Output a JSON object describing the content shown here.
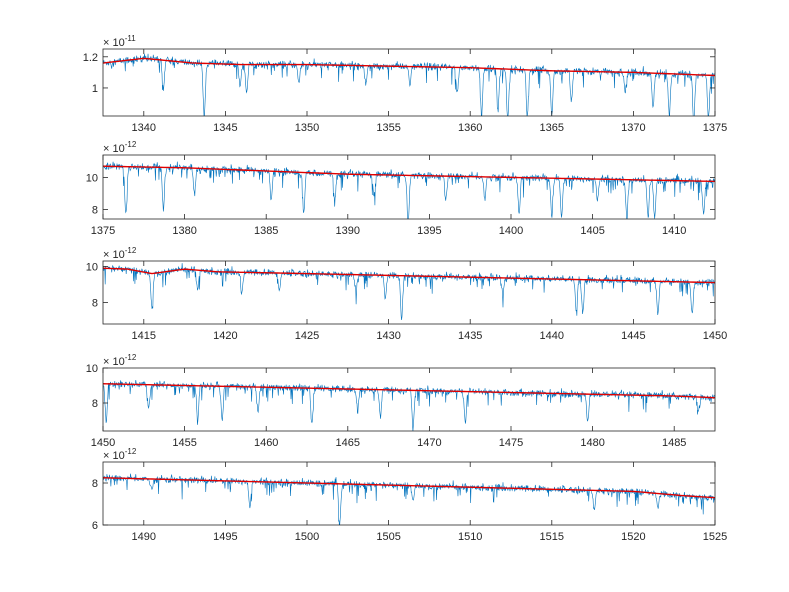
{
  "chart_data": [
    {
      "type": "line",
      "xlim": [
        1337.5,
        1375
      ],
      "ylim": [
        0.82,
        1.25
      ],
      "xticks": [
        1340,
        1345,
        1350,
        1355,
        1360,
        1365,
        1370,
        1375
      ],
      "yticks": [
        1,
        1.2
      ],
      "ytick_labels": [
        "1",
        "1.2"
      ],
      "exponent_base": "× 10",
      "exponent": "-11",
      "spectrum_color": "#0072BD",
      "continuum_color": "#E00000",
      "continuum": [
        [
          1337.5,
          1.16
        ],
        [
          1340,
          1.19
        ],
        [
          1343,
          1.16
        ],
        [
          1346,
          1.15
        ],
        [
          1350,
          1.15
        ],
        [
          1355,
          1.14
        ],
        [
          1360,
          1.13
        ],
        [
          1365,
          1.11
        ],
        [
          1370,
          1.1
        ],
        [
          1375,
          1.08
        ]
      ],
      "absorption_lines": [
        [
          1341.2,
          0.18
        ],
        [
          1343.7,
          0.36
        ],
        [
          1345.9,
          0.13
        ],
        [
          1346.3,
          0.18
        ],
        [
          1349.5,
          0.12
        ],
        [
          1353.6,
          0.12
        ],
        [
          1356.3,
          0.11
        ],
        [
          1359.2,
          0.17
        ],
        [
          1360.7,
          0.3
        ],
        [
          1361.7,
          0.28
        ],
        [
          1362.3,
          0.33
        ],
        [
          1363.5,
          0.3
        ],
        [
          1365.0,
          0.29
        ],
        [
          1366.2,
          0.2
        ],
        [
          1369.5,
          0.12
        ],
        [
          1371.2,
          0.23
        ],
        [
          1372.2,
          0.27
        ],
        [
          1373.7,
          0.31
        ],
        [
          1374.6,
          0.28
        ]
      ],
      "grid": false
    },
    {
      "type": "line",
      "xlim": [
        1375,
        1412.5
      ],
      "ylim": [
        7.4,
        11.4
      ],
      "xticks": [
        1375,
        1380,
        1385,
        1390,
        1395,
        1400,
        1405,
        1410
      ],
      "yticks": [
        8,
        10
      ],
      "ytick_labels": [
        "8",
        "10"
      ],
      "exponent_base": "× 10",
      "exponent": "-12",
      "spectrum_color": "#0072BD",
      "continuum_color": "#E00000",
      "continuum": [
        [
          1375,
          10.7
        ],
        [
          1380,
          10.6
        ],
        [
          1385,
          10.4
        ],
        [
          1390,
          10.2
        ],
        [
          1395,
          10.1
        ],
        [
          1400,
          10.0
        ],
        [
          1405,
          9.9
        ],
        [
          1410,
          9.8
        ],
        [
          1412.5,
          9.75
        ]
      ],
      "absorption_lines": [
        [
          1376.4,
          3.0
        ],
        [
          1378.7,
          2.6
        ],
        [
          1380.6,
          1.6
        ],
        [
          1385.3,
          1.8
        ],
        [
          1387.3,
          2.6
        ],
        [
          1389.2,
          1.8
        ],
        [
          1391.6,
          1.3
        ],
        [
          1393.7,
          3.0
        ],
        [
          1396.0,
          1.5
        ],
        [
          1398.4,
          1.4
        ],
        [
          1400.5,
          2.3
        ],
        [
          1402.5,
          2.4
        ],
        [
          1403.1,
          2.5
        ],
        [
          1405.3,
          1.3
        ],
        [
          1407.1,
          2.4
        ],
        [
          1408.4,
          2.3
        ],
        [
          1408.8,
          2.4
        ],
        [
          1411.8,
          2.0
        ]
      ],
      "grid": false
    },
    {
      "type": "line",
      "xlim": [
        1412.5,
        1450
      ],
      "ylim": [
        6.8,
        10.3
      ],
      "xticks": [
        1415,
        1420,
        1425,
        1430,
        1435,
        1440,
        1445,
        1450
      ],
      "yticks": [
        8,
        10
      ],
      "ytick_labels": [
        "8",
        "10"
      ],
      "exponent_base": "× 10",
      "exponent": "-12",
      "spectrum_color": "#0072BD",
      "continuum_color": "#E00000",
      "continuum": [
        [
          1412.5,
          9.9
        ],
        [
          1414,
          9.85
        ],
        [
          1415.5,
          9.6
        ],
        [
          1417.5,
          9.85
        ],
        [
          1419.5,
          9.7
        ],
        [
          1425,
          9.6
        ],
        [
          1430,
          9.5
        ],
        [
          1435,
          9.4
        ],
        [
          1440,
          9.3
        ],
        [
          1445,
          9.2
        ],
        [
          1450,
          9.1
        ]
      ],
      "absorption_lines": [
        [
          1415.5,
          1.9
        ],
        [
          1418.3,
          1.1
        ],
        [
          1421.0,
          1.2
        ],
        [
          1423.3,
          0.9
        ],
        [
          1428.0,
          0.9
        ],
        [
          1429.8,
          1.3
        ],
        [
          1430.8,
          2.4
        ],
        [
          1437.0,
          0.8
        ],
        [
          1441.5,
          1.7
        ],
        [
          1441.9,
          1.8
        ],
        [
          1446.5,
          1.8
        ],
        [
          1448.6,
          1.8
        ]
      ],
      "grid": false
    },
    {
      "type": "line",
      "xlim": [
        1450,
        1487.5
      ],
      "ylim": [
        6.4,
        10.0
      ],
      "xticks": [
        1450,
        1455,
        1460,
        1465,
        1470,
        1475,
        1480,
        1485
      ],
      "yticks": [
        8,
        10
      ],
      "ytick_labels": [
        "8",
        "10"
      ],
      "exponent_base": "× 10",
      "exponent": "-12",
      "spectrum_color": "#0072BD",
      "continuum_color": "#E00000",
      "continuum": [
        [
          1450,
          9.1
        ],
        [
          1455,
          9.0
        ],
        [
          1460,
          8.9
        ],
        [
          1465,
          8.8
        ],
        [
          1470,
          8.7
        ],
        [
          1475,
          8.6
        ],
        [
          1480,
          8.5
        ],
        [
          1485,
          8.4
        ],
        [
          1487.5,
          8.3
        ]
      ],
      "absorption_lines": [
        [
          1450.2,
          2.2
        ],
        [
          1452.8,
          1.4
        ],
        [
          1455.8,
          2.0
        ],
        [
          1457.3,
          2.0
        ],
        [
          1459.5,
          1.5
        ],
        [
          1462.8,
          2.1
        ],
        [
          1465.6,
          1.3
        ],
        [
          1467.0,
          1.6
        ],
        [
          1469.0,
          2.2
        ],
        [
          1472.2,
          1.7
        ],
        [
          1479.7,
          1.6
        ],
        [
          1486.5,
          0.8
        ]
      ],
      "grid": false
    },
    {
      "type": "line",
      "xlim": [
        1487.5,
        1525
      ],
      "ylim": [
        6.0,
        9.0
      ],
      "xticks": [
        1490,
        1495,
        1500,
        1505,
        1510,
        1515,
        1520,
        1525
      ],
      "yticks": [
        6,
        8
      ],
      "ytick_labels": [
        "6",
        "8"
      ],
      "exponent_base": "× 10",
      "exponent": "-12",
      "spectrum_color": "#0072BD",
      "continuum_color": "#E00000",
      "continuum": [
        [
          1487.5,
          8.25
        ],
        [
          1490,
          8.2
        ],
        [
          1495,
          8.1
        ],
        [
          1500,
          8.0
        ],
        [
          1505,
          7.9
        ],
        [
          1510,
          7.8
        ],
        [
          1515,
          7.7
        ],
        [
          1520,
          7.6
        ],
        [
          1523,
          7.4
        ],
        [
          1525,
          7.3
        ]
      ],
      "absorption_lines": [
        [
          1490.5,
          0.6
        ],
        [
          1496.5,
          1.2
        ],
        [
          1502.0,
          2.0
        ],
        [
          1506.5,
          0.8
        ],
        [
          1517.6,
          1.0
        ],
        [
          1521.5,
          0.7
        ]
      ],
      "grid": false
    }
  ]
}
